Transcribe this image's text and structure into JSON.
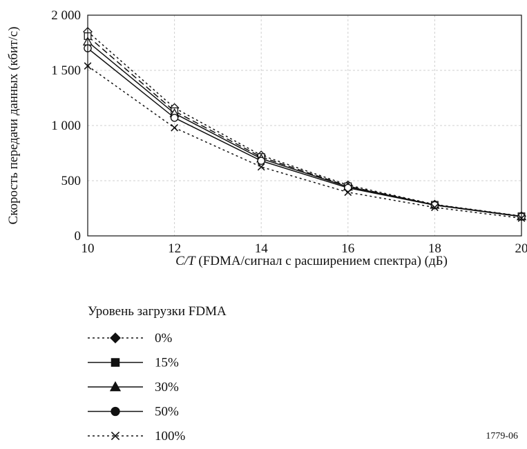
{
  "chart_data": {
    "type": "line",
    "title": "",
    "xlabel_italic": "C/T",
    "xlabel_rest": " (FDMA/сигнал с расширением спектра) (дБ)",
    "ylabel": "Скорость передачи данных (кбит/с)",
    "x": [
      10,
      12,
      14,
      16,
      18,
      20
    ],
    "xlim": [
      10,
      20
    ],
    "ylim": [
      0,
      2000
    ],
    "x_ticks": [
      10,
      12,
      14,
      16,
      18,
      20
    ],
    "y_ticks": [
      0,
      500,
      1000,
      1500,
      2000
    ],
    "y_tick_labels": [
      "0",
      "500",
      "1 000",
      "1 500",
      "2 000"
    ],
    "grid": true,
    "legend_title": "Уровень загрузки FDMA",
    "legend_placement": "below",
    "series": [
      {
        "name": "0%",
        "values": [
          1850,
          1160,
          730,
          460,
          285,
          180
        ],
        "marker": "diamond",
        "dash": "dotted"
      },
      {
        "name": "15%",
        "values": [
          1810,
          1130,
          715,
          450,
          282,
          178
        ],
        "marker": "square",
        "dash": "dashed"
      },
      {
        "name": "30%",
        "values": [
          1760,
          1110,
          700,
          445,
          280,
          176
        ],
        "marker": "triangle",
        "dash": "solid"
      },
      {
        "name": "50%",
        "values": [
          1700,
          1070,
          680,
          435,
          278,
          174
        ],
        "marker": "circle",
        "dash": "solid"
      },
      {
        "name": "100%",
        "values": [
          1540,
          980,
          625,
          395,
          258,
          160
        ],
        "marker": "cross",
        "dash": "dotted"
      }
    ],
    "colors": {
      "line": "#111111",
      "grid": "#cfcfcf"
    }
  },
  "figure_id": "1779-06"
}
